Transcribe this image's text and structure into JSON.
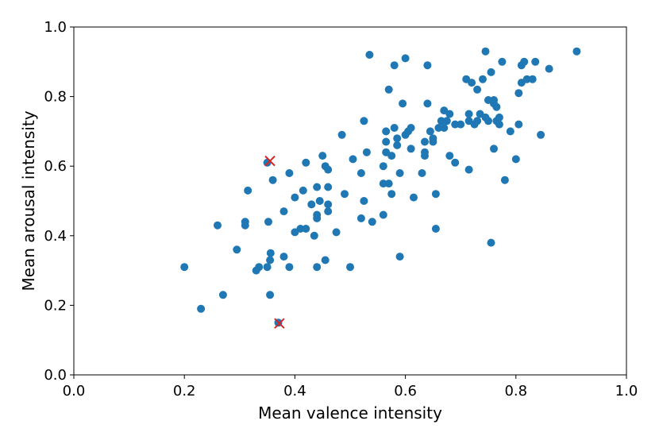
{
  "chart_data": {
    "type": "scatter",
    "title": "",
    "xlabel": "Mean valence intensity",
    "ylabel": "Mean arousal intensity",
    "xlim": [
      0.0,
      1.0
    ],
    "ylim": [
      0.0,
      1.0
    ],
    "xticks": [
      "0.0",
      "0.2",
      "0.4",
      "0.6",
      "0.8",
      "1.0"
    ],
    "yticks": [
      "0.0",
      "0.2",
      "0.4",
      "0.6",
      "0.8",
      "1.0"
    ],
    "grid": false,
    "point_color": "#1f77b4",
    "marker_color": "#d62728",
    "series": [
      {
        "name": "items",
        "points": [
          [
            0.2,
            0.31
          ],
          [
            0.23,
            0.19
          ],
          [
            0.26,
            0.43
          ],
          [
            0.27,
            0.23
          ],
          [
            0.295,
            0.36
          ],
          [
            0.31,
            0.44
          ],
          [
            0.31,
            0.43
          ],
          [
            0.315,
            0.53
          ],
          [
            0.33,
            0.3
          ],
          [
            0.335,
            0.31
          ],
          [
            0.35,
            0.31
          ],
          [
            0.352,
            0.44
          ],
          [
            0.355,
            0.33
          ],
          [
            0.356,
            0.35
          ],
          [
            0.355,
            0.23
          ],
          [
            0.36,
            0.56
          ],
          [
            0.38,
            0.34
          ],
          [
            0.38,
            0.47
          ],
          [
            0.39,
            0.31
          ],
          [
            0.39,
            0.58
          ],
          [
            0.4,
            0.41
          ],
          [
            0.4,
            0.51
          ],
          [
            0.41,
            0.42
          ],
          [
            0.415,
            0.53
          ],
          [
            0.42,
            0.42
          ],
          [
            0.42,
            0.61
          ],
          [
            0.43,
            0.49
          ],
          [
            0.435,
            0.4
          ],
          [
            0.44,
            0.31
          ],
          [
            0.44,
            0.45
          ],
          [
            0.44,
            0.46
          ],
          [
            0.44,
            0.54
          ],
          [
            0.445,
            0.5
          ],
          [
            0.45,
            0.63
          ],
          [
            0.455,
            0.6
          ],
          [
            0.455,
            0.33
          ],
          [
            0.46,
            0.59
          ],
          [
            0.46,
            0.47
          ],
          [
            0.46,
            0.49
          ],
          [
            0.46,
            0.54
          ],
          [
            0.475,
            0.41
          ],
          [
            0.485,
            0.69
          ],
          [
            0.49,
            0.52
          ],
          [
            0.5,
            0.31
          ],
          [
            0.505,
            0.62
          ],
          [
            0.52,
            0.58
          ],
          [
            0.52,
            0.45
          ],
          [
            0.525,
            0.5
          ],
          [
            0.525,
            0.73
          ],
          [
            0.53,
            0.64
          ],
          [
            0.535,
            0.92
          ],
          [
            0.54,
            0.44
          ],
          [
            0.56,
            0.46
          ],
          [
            0.56,
            0.55
          ],
          [
            0.56,
            0.6
          ],
          [
            0.565,
            0.64
          ],
          [
            0.565,
            0.67
          ],
          [
            0.565,
            0.7
          ],
          [
            0.57,
            0.82
          ],
          [
            0.57,
            0.55
          ],
          [
            0.575,
            0.52
          ],
          [
            0.575,
            0.63
          ],
          [
            0.58,
            0.71
          ],
          [
            0.58,
            0.89
          ],
          [
            0.585,
            0.66
          ],
          [
            0.585,
            0.68
          ],
          [
            0.59,
            0.34
          ],
          [
            0.59,
            0.58
          ],
          [
            0.595,
            0.78
          ],
          [
            0.6,
            0.91
          ],
          [
            0.6,
            0.69
          ],
          [
            0.605,
            0.7
          ],
          [
            0.61,
            0.71
          ],
          [
            0.61,
            0.65
          ],
          [
            0.615,
            0.51
          ],
          [
            0.63,
            0.58
          ],
          [
            0.635,
            0.63
          ],
          [
            0.635,
            0.64
          ],
          [
            0.635,
            0.67
          ],
          [
            0.64,
            0.89
          ],
          [
            0.64,
            0.78
          ],
          [
            0.645,
            0.7
          ],
          [
            0.65,
            0.68
          ],
          [
            0.65,
            0.67
          ],
          [
            0.655,
            0.42
          ],
          [
            0.655,
            0.52
          ],
          [
            0.66,
            0.71
          ],
          [
            0.665,
            0.73
          ],
          [
            0.67,
            0.71
          ],
          [
            0.67,
            0.76
          ],
          [
            0.675,
            0.73
          ],
          [
            0.68,
            0.75
          ],
          [
            0.68,
            0.63
          ],
          [
            0.69,
            0.72
          ],
          [
            0.69,
            0.61
          ],
          [
            0.7,
            0.72
          ],
          [
            0.71,
            0.85
          ],
          [
            0.715,
            0.75
          ],
          [
            0.715,
            0.73
          ],
          [
            0.715,
            0.59
          ],
          [
            0.72,
            0.84
          ],
          [
            0.725,
            0.72
          ],
          [
            0.73,
            0.73
          ],
          [
            0.73,
            0.82
          ],
          [
            0.735,
            0.75
          ],
          [
            0.74,
            0.85
          ],
          [
            0.745,
            0.93
          ],
          [
            0.745,
            0.74
          ],
          [
            0.75,
            0.79
          ],
          [
            0.75,
            0.73
          ],
          [
            0.755,
            0.87
          ],
          [
            0.755,
            0.38
          ],
          [
            0.76,
            0.78
          ],
          [
            0.76,
            0.79
          ],
          [
            0.76,
            0.65
          ],
          [
            0.765,
            0.73
          ],
          [
            0.765,
            0.77
          ],
          [
            0.77,
            0.74
          ],
          [
            0.77,
            0.72
          ],
          [
            0.775,
            0.9
          ],
          [
            0.78,
            0.56
          ],
          [
            0.79,
            0.7
          ],
          [
            0.8,
            0.62
          ],
          [
            0.805,
            0.72
          ],
          [
            0.805,
            0.81
          ],
          [
            0.81,
            0.84
          ],
          [
            0.81,
            0.89
          ],
          [
            0.815,
            0.9
          ],
          [
            0.82,
            0.85
          ],
          [
            0.83,
            0.85
          ],
          [
            0.835,
            0.9
          ],
          [
            0.845,
            0.69
          ],
          [
            0.86,
            0.88
          ],
          [
            0.91,
            0.93
          ],
          [
            0.35,
            0.61
          ],
          [
            0.37,
            0.15
          ]
        ]
      }
    ],
    "highlighted": [
      [
        0.355,
        0.615
      ],
      [
        0.372,
        0.148
      ]
    ]
  }
}
